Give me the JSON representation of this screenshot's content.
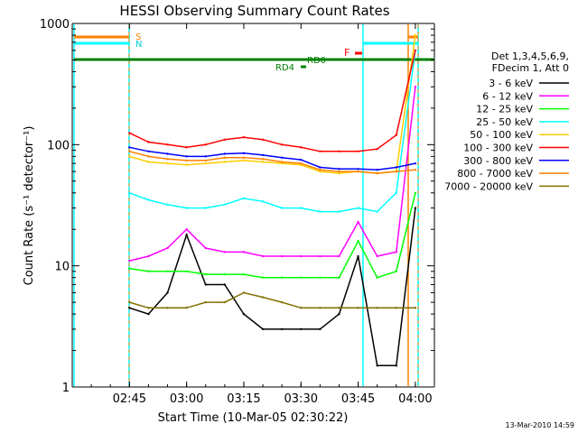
{
  "chart_data": {
    "type": "line",
    "title": "HESSI Observing Summary Count Rates",
    "xlabel": "Start Time (10-Mar-05 02:30:22)",
    "ylabel": "Count Rate (s⁻¹ detector⁻¹)",
    "y_scale": "log",
    "ylim": [
      1,
      1000
    ],
    "xlim_minutes": [
      0,
      95
    ],
    "x_ticks": [
      {
        "label": "02:45",
        "min": 15
      },
      {
        "label": "03:00",
        "min": 30
      },
      {
        "label": "03:15",
        "min": 45
      },
      {
        "label": "03:30",
        "min": 60
      },
      {
        "label": "03:45",
        "min": 75
      },
      {
        "label": "04:00",
        "min": 90
      }
    ],
    "y_ticks": [
      {
        "label": "1",
        "value": 1
      },
      {
        "label": "10",
        "value": 10
      },
      {
        "label": "100",
        "value": 100
      },
      {
        "label": "1000",
        "value": 1000
      }
    ],
    "legend_header": [
      "Det 1,3,4,5,6,9,",
      "FDecim 1, Att 0"
    ],
    "legend_position": "right",
    "series": [
      {
        "name": "3 - 6 keV",
        "color": "#000000",
        "x": [
          15,
          20,
          25,
          30,
          35,
          40,
          45,
          50,
          55,
          60,
          65,
          70,
          75,
          80,
          85,
          90
        ],
        "values": [
          4.5,
          4,
          6,
          18,
          7,
          7,
          4,
          3,
          3,
          3,
          3,
          4,
          12,
          1.5,
          1.5,
          30
        ]
      },
      {
        "name": "6 - 12 keV",
        "color": "#ff00ff",
        "x": [
          15,
          20,
          25,
          30,
          35,
          40,
          45,
          50,
          55,
          60,
          65,
          70,
          75,
          80,
          85,
          90
        ],
        "values": [
          11,
          12,
          14,
          20,
          14,
          13,
          13,
          12,
          12,
          12,
          12,
          12,
          23,
          12,
          13,
          300
        ]
      },
      {
        "name": "12 - 25 keV",
        "color": "#00ff00",
        "x": [
          15,
          20,
          25,
          30,
          35,
          40,
          45,
          50,
          55,
          60,
          65,
          70,
          75,
          80,
          85,
          90
        ],
        "values": [
          9.5,
          9,
          9,
          9,
          8.5,
          8.5,
          8.5,
          8,
          8,
          8,
          8,
          8,
          16,
          8,
          9,
          40
        ]
      },
      {
        "name": "25 - 50 keV",
        "color": "#00ffff",
        "x": [
          15,
          20,
          25,
          30,
          35,
          40,
          45,
          50,
          55,
          60,
          65,
          70,
          75,
          80,
          85,
          90
        ],
        "values": [
          40,
          35,
          32,
          30,
          30,
          32,
          36,
          34,
          30,
          30,
          28,
          28,
          30,
          28,
          40,
          600
        ]
      },
      {
        "name": "50 - 100 keV",
        "color": "#ffcc00",
        "x": [
          15,
          20,
          25,
          30,
          35,
          40,
          45,
          50,
          55,
          60,
          65,
          70,
          75,
          80,
          85,
          90
        ],
        "values": [
          80,
          72,
          70,
          68,
          70,
          72,
          74,
          72,
          70,
          68,
          60,
          58,
          60,
          58,
          60,
          800
        ]
      },
      {
        "name": "100 - 300 keV",
        "color": "#ff0000",
        "x": [
          15,
          20,
          25,
          30,
          35,
          40,
          45,
          50,
          55,
          60,
          65,
          70,
          75,
          80,
          85,
          90
        ],
        "values": [
          125,
          105,
          100,
          95,
          100,
          110,
          115,
          110,
          100,
          95,
          88,
          88,
          88,
          92,
          120,
          600
        ]
      },
      {
        "name": "300 - 800 keV",
        "color": "#0000ff",
        "x": [
          15,
          20,
          25,
          30,
          35,
          40,
          45,
          50,
          55,
          60,
          65,
          70,
          75,
          80,
          85,
          90
        ],
        "values": [
          95,
          88,
          84,
          80,
          80,
          84,
          85,
          82,
          78,
          75,
          65,
          63,
          63,
          62,
          65,
          70
        ]
      },
      {
        "name": "800 - 7000 keV",
        "color": "#ff8000",
        "x": [
          15,
          20,
          25,
          30,
          35,
          40,
          45,
          50,
          55,
          60,
          65,
          70,
          75,
          80,
          85,
          90
        ],
        "values": [
          88,
          80,
          76,
          74,
          74,
          78,
          78,
          76,
          72,
          70,
          62,
          60,
          60,
          58,
          60,
          62
        ]
      },
      {
        "name": "7000 - 20000 keV",
        "color": "#807000",
        "x": [
          15,
          20,
          25,
          30,
          35,
          40,
          45,
          50,
          55,
          60,
          65,
          70,
          75,
          80,
          85,
          90
        ],
        "values": [
          5,
          4.5,
          4.5,
          4.5,
          5,
          5,
          6,
          5.5,
          5,
          4.5,
          4.5,
          4.5,
          4.5,
          4.5,
          4.5,
          4.5
        ]
      }
    ],
    "annotations": {
      "S": "S",
      "N": "N",
      "F": "F",
      "RD0": "RD0",
      "RD4": "RD4"
    },
    "footer_date": "13-Mar-2010 14:59"
  }
}
